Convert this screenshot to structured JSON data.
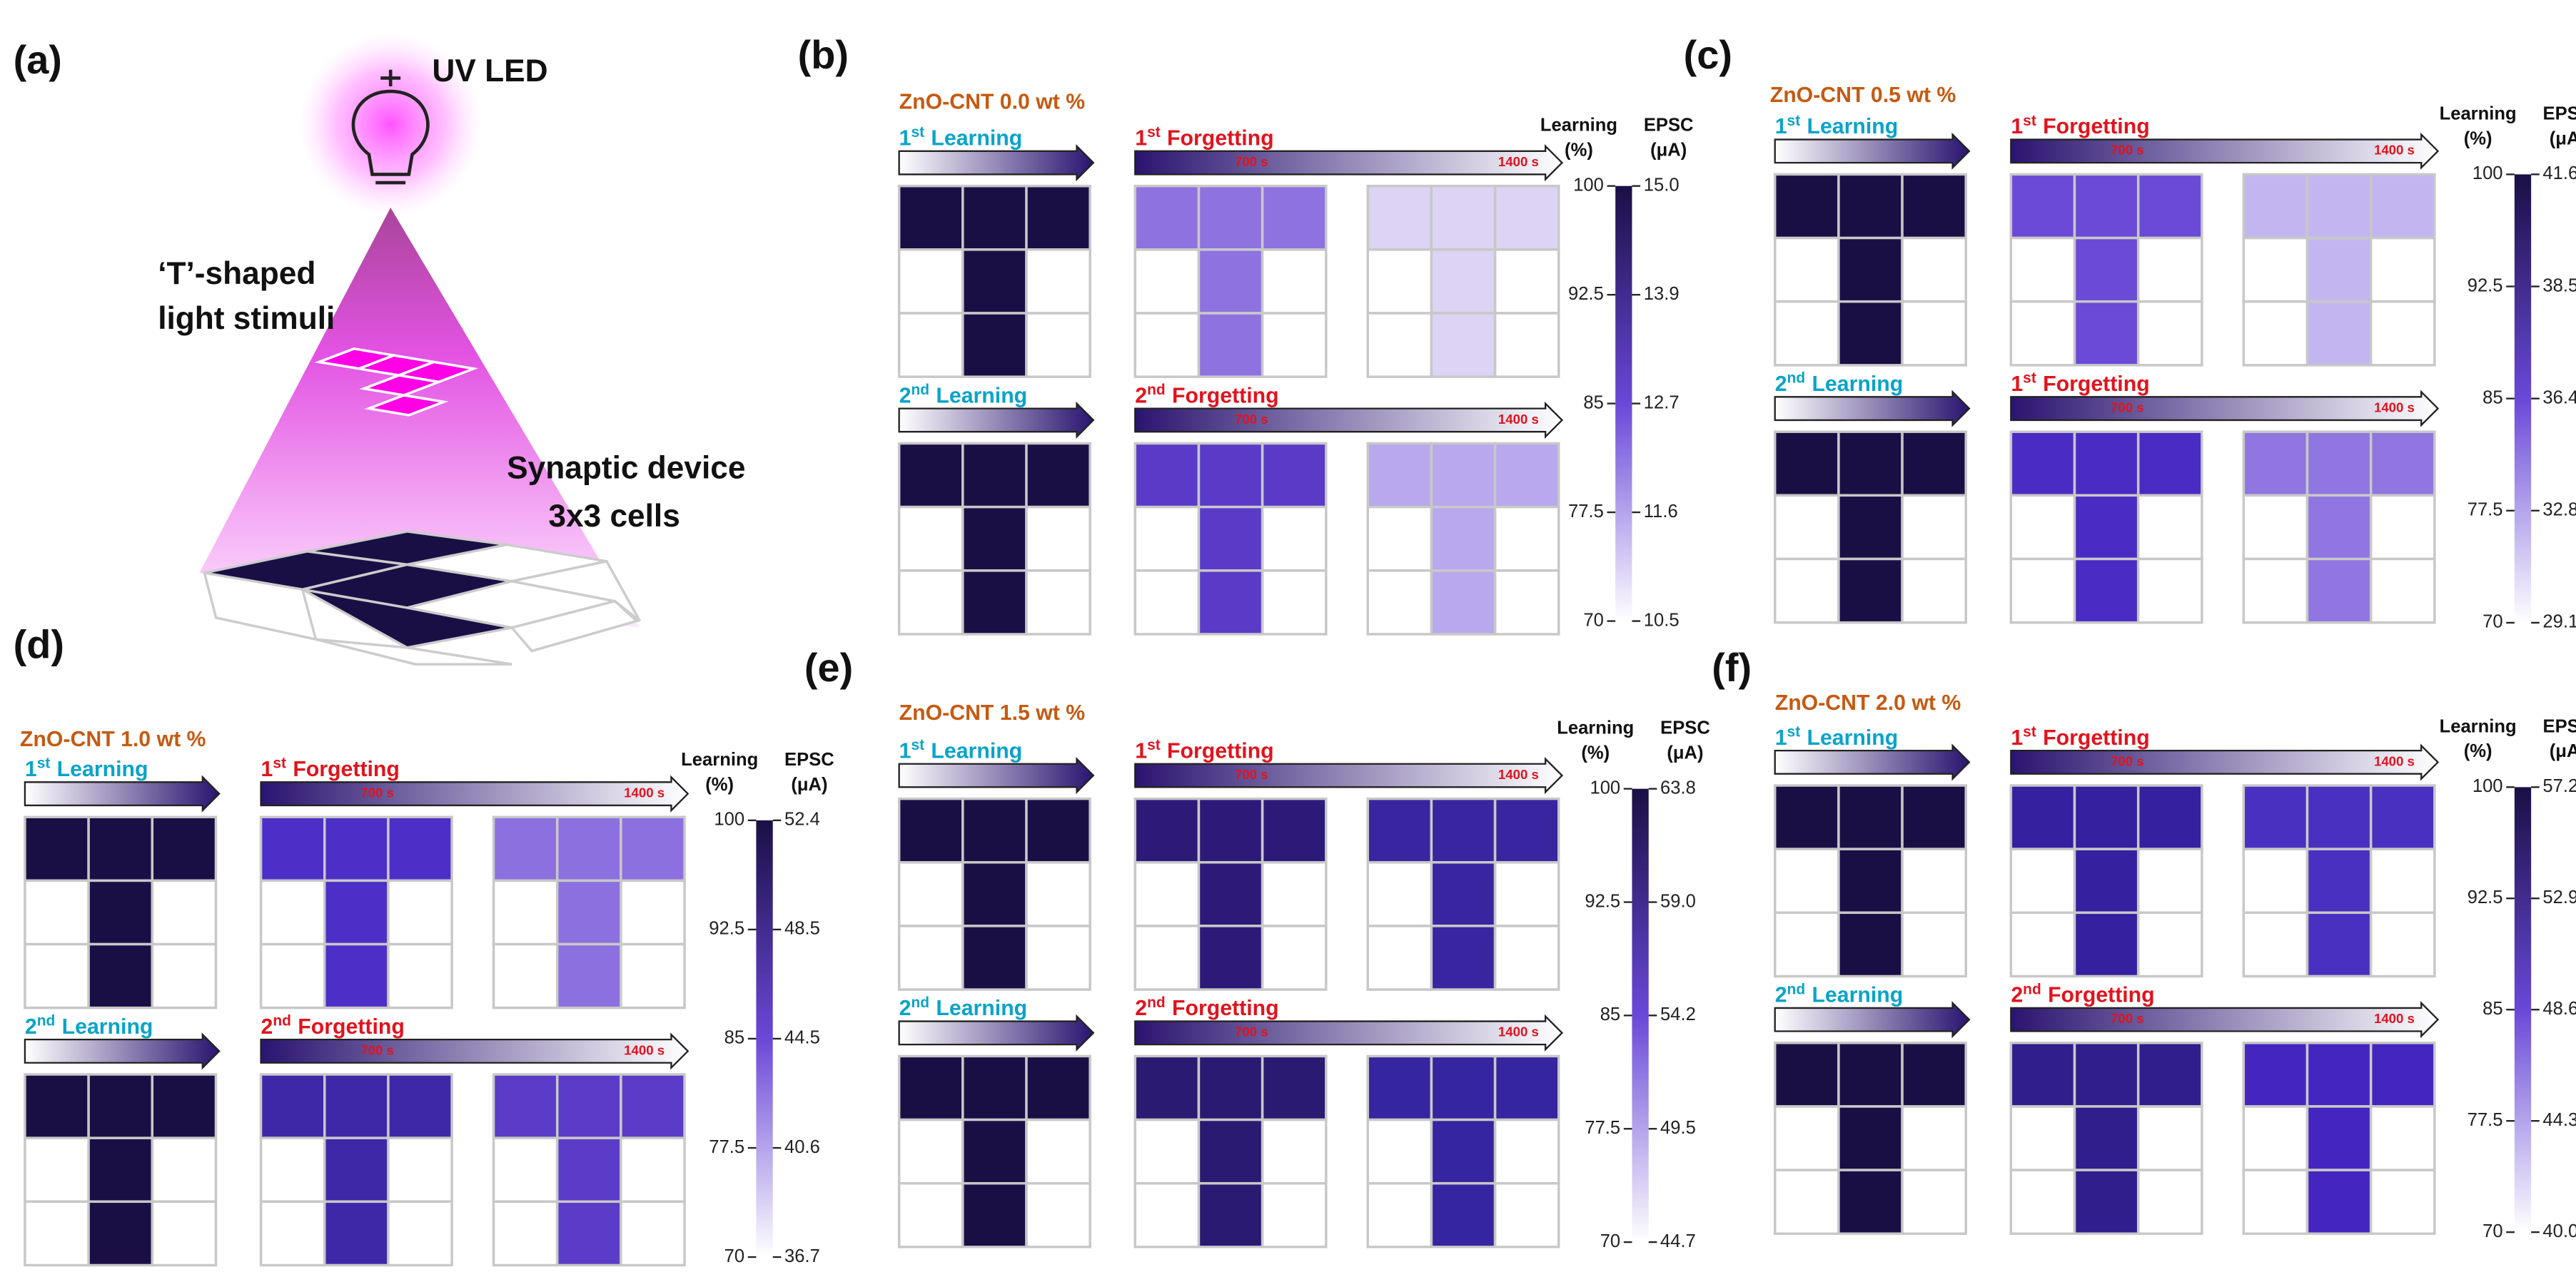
{
  "panel_a": {
    "label": "(a)",
    "led": "UV LED",
    "stimuli": [
      "‘T’-shaped",
      "light stimuli"
    ],
    "device": [
      "Synaptic device",
      "3x3 cells"
    ]
  },
  "panels": [
    {
      "label": "(b)",
      "title": "ZnO-CNT 0.0 wt %",
      "rows": [
        {
          "learning": {
            "ord": "1",
            "sup": "st",
            "word": "Learning"
          },
          "forgetting": {
            "ord": "1",
            "sup": "st",
            "word": "Forgetting"
          },
          "times": [
            "700 s",
            "1400 s"
          ],
          "colors": [
            "#1a0f45",
            "#8e72e0",
            "#dcd3f5"
          ]
        },
        {
          "learning": {
            "ord": "2",
            "sup": "nd",
            "word": "Learning"
          },
          "forgetting": {
            "ord": "2",
            "sup": "nd",
            "word": "Forgetting"
          },
          "times": [
            "700 s",
            "1400 s"
          ],
          "colors": [
            "#1a0f45",
            "#5a3bc8",
            "#b9a8ee"
          ]
        }
      ],
      "colorbar": {
        "left_title": [
          "Learning",
          "(%)"
        ],
        "right_title": [
          "EPSC",
          "(μA)"
        ],
        "left_ticks": [
          100,
          92.5,
          85,
          77.5,
          70
        ],
        "right_ticks": [
          {
            "value": 15,
            "label": "15.0"
          },
          13.9,
          12.7,
          11.6,
          10.5
        ]
      }
    },
    {
      "label": "(c)",
      "title": "ZnO-CNT 0.5 wt %",
      "rows": [
        {
          "learning": {
            "ord": "1",
            "sup": "st",
            "word": "Learning"
          },
          "forgetting": {
            "ord": "1",
            "sup": "st",
            "word": "Forgetting"
          },
          "times": [
            "700 s",
            "1400 s"
          ],
          "colors": [
            "#1a0f45",
            "#6a4ad6",
            "#c3b6f0"
          ]
        },
        {
          "learning": {
            "ord": "2",
            "sup": "nd",
            "word": "Learning"
          },
          "forgetting": {
            "ord": "1",
            "sup": "st",
            "word": "Forgetting"
          },
          "times": [
            "700 s",
            "1400 s"
          ],
          "colors": [
            "#1a0f45",
            "#4a2cc4",
            "#8f76e0"
          ]
        }
      ],
      "colorbar": {
        "left_title": [
          "Learning",
          "(%)"
        ],
        "right_title": [
          "EPSC",
          "(μA)"
        ],
        "left_ticks": [
          100,
          92.5,
          85,
          77.5,
          70
        ],
        "right_ticks": [
          41.6,
          38.5,
          36.4,
          32.8,
          29.1
        ]
      }
    },
    {
      "label": "(d)",
      "title": "ZnO-CNT 1.0 wt %",
      "rows": [
        {
          "learning": {
            "ord": "1",
            "sup": "st",
            "word": "Learning"
          },
          "forgetting": {
            "ord": "1",
            "sup": "st",
            "word": "Forgetting"
          },
          "times": [
            "700 s",
            "1400 s"
          ],
          "colors": [
            "#1a0f45",
            "#4d2fc8",
            "#8c70e0"
          ]
        },
        {
          "learning": {
            "ord": "2",
            "sup": "nd",
            "word": "Learning"
          },
          "forgetting": {
            "ord": "2",
            "sup": "nd",
            "word": "Forgetting"
          },
          "times": [
            "700 s",
            "1400 s"
          ],
          "colors": [
            "#1a0f45",
            "#3e28a8",
            "#5a3cc8"
          ]
        }
      ],
      "colorbar": {
        "left_title": [
          "Learning",
          "(%)"
        ],
        "right_title": [
          "EPSC",
          "(μA)"
        ],
        "left_ticks": [
          100,
          92.5,
          85,
          77.5,
          70
        ],
        "right_ticks": [
          52.4,
          48.5,
          44.5,
          40.6,
          36.7
        ]
      }
    },
    {
      "label": "(e)",
      "title": "ZnO-CNT 1.5 wt %",
      "rows": [
        {
          "learning": {
            "ord": "1",
            "sup": "st",
            "word": "Learning"
          },
          "forgetting": {
            "ord": "1",
            "sup": "st",
            "word": "Forgetting"
          },
          "times": [
            "700 s",
            "1400 s"
          ],
          "colors": [
            "#1a0f45",
            "#2d1a78",
            "#3a25a0"
          ]
        },
        {
          "learning": {
            "ord": "2",
            "sup": "nd",
            "word": "Learning"
          },
          "forgetting": {
            "ord": "2",
            "sup": "nd",
            "word": "Forgetting"
          },
          "times": [
            "700 s",
            "1400 s"
          ],
          "colors": [
            "#1a0f45",
            "#2a1a72",
            "#3525a0"
          ]
        }
      ],
      "colorbar": {
        "left_title": [
          "Learning",
          "(%)"
        ],
        "right_title": [
          "EPSC",
          "(μA)"
        ],
        "left_ticks": [
          100,
          92.5,
          85,
          77.5,
          70
        ],
        "right_ticks": [
          63.8,
          {
            "value": 59,
            "label": "59.0"
          },
          54.2,
          49.5,
          44.7
        ]
      }
    },
    {
      "label": "(f)",
      "title": "ZnO-CNT 2.0 wt %",
      "rows": [
        {
          "learning": {
            "ord": "1",
            "sup": "st",
            "word": "Learning"
          },
          "forgetting": {
            "ord": "1",
            "sup": "st",
            "word": "Forgetting"
          },
          "times": [
            "700 s",
            "1400 s"
          ],
          "colors": [
            "#1a0f45",
            "#3520a0",
            "#4a30c0"
          ]
        },
        {
          "learning": {
            "ord": "2",
            "sup": "nd",
            "word": "Learning"
          },
          "forgetting": {
            "ord": "2",
            "sup": "nd",
            "word": "Forgetting"
          },
          "times": [
            "700 s",
            "1400 s"
          ],
          "colors": [
            "#1a0f45",
            "#2f1e8c",
            "#4525c0"
          ]
        }
      ],
      "colorbar": {
        "left_title": [
          "Learning",
          "(%)"
        ],
        "right_title": [
          "EPSC",
          "(μA)"
        ],
        "left_ticks": [
          100,
          92.5,
          85,
          77.5,
          70
        ],
        "right_ticks": [
          57.2,
          52.9,
          48.6,
          44.3,
          {
            "value": 40,
            "label": "40.0"
          }
        ]
      }
    }
  ]
}
